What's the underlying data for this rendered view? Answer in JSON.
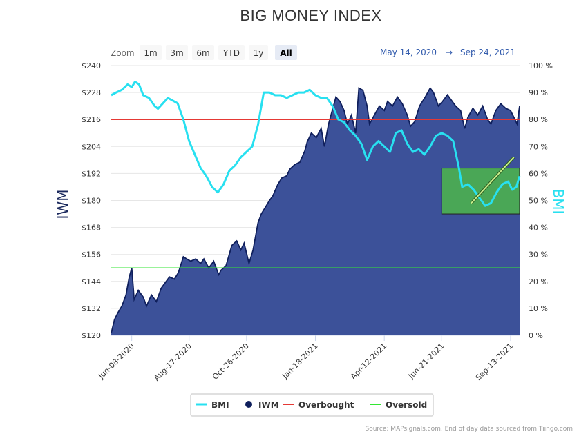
{
  "chart_data": {
    "type": "area",
    "title": "BIG MONEY INDEX",
    "range_selector": {
      "label": "Zoom",
      "buttons": [
        "1m",
        "3m",
        "6m",
        "YTD",
        "1y",
        "All"
      ],
      "selected": "All",
      "from": "May 14, 2020",
      "arrow": "→",
      "to": "Sep 24, 2021"
    },
    "left_axis": {
      "title": "IWM",
      "min": 120,
      "max": 240,
      "ticks": [
        "$120",
        "$132",
        "$144",
        "$156",
        "$168",
        "$180",
        "$192",
        "$204",
        "$216",
        "$228",
        "$240"
      ]
    },
    "right_axis": {
      "title": "BMI",
      "min": 0,
      "max": 100,
      "ticks": [
        "0 %",
        "10 %",
        "20 %",
        "30 %",
        "40 %",
        "50 %",
        "60 %",
        "70 %",
        "80 %",
        "90 %",
        "100 %"
      ]
    },
    "x_axis": {
      "start": "2020-05-14",
      "end": "2021-09-24",
      "ticks": [
        "Jun-08-2020",
        "Aug-17-2020",
        "Oct-26-2020",
        "Jan-18-2021",
        "Apr-12-2021",
        "Jun-21-2021",
        "Sep-13-2021"
      ],
      "tick_dates": [
        "2020-06-08",
        "2020-08-17",
        "2020-10-26",
        "2021-01-18",
        "2021-04-12",
        "2021-06-21",
        "2021-09-13"
      ]
    },
    "legend": {
      "placement": "bottom-center",
      "items": [
        {
          "name": "BMI",
          "type": "line",
          "color": "#28e0f0"
        },
        {
          "name": "IWM",
          "type": "marker",
          "color": "#0f1f5c"
        },
        {
          "name": "Overbought",
          "type": "line",
          "color": "#e53935"
        },
        {
          "name": "Oversold",
          "type": "line",
          "color": "#33e633"
        }
      ]
    },
    "series": [
      {
        "name": "IWM",
        "axis": "left",
        "color": "#0f1f5c",
        "fill": "#3c5199",
        "points": [
          [
            "2020-05-14",
            121
          ],
          [
            "2020-05-18",
            127
          ],
          [
            "2020-05-22",
            130
          ],
          [
            "2020-05-27",
            133
          ],
          [
            "2020-06-01",
            138
          ],
          [
            "2020-06-05",
            146
          ],
          [
            "2020-06-08",
            150
          ],
          [
            "2020-06-11",
            136
          ],
          [
            "2020-06-16",
            140
          ],
          [
            "2020-06-22",
            137
          ],
          [
            "2020-06-26",
            133
          ],
          [
            "2020-07-02",
            138
          ],
          [
            "2020-07-08",
            135
          ],
          [
            "2020-07-14",
            141
          ],
          [
            "2020-07-20",
            144
          ],
          [
            "2020-07-24",
            146
          ],
          [
            "2020-07-30",
            145
          ],
          [
            "2020-08-04",
            148
          ],
          [
            "2020-08-10",
            155
          ],
          [
            "2020-08-14",
            154
          ],
          [
            "2020-08-19",
            153
          ],
          [
            "2020-08-25",
            154
          ],
          [
            "2020-08-31",
            152
          ],
          [
            "2020-09-04",
            154
          ],
          [
            "2020-09-10",
            150
          ],
          [
            "2020-09-16",
            153
          ],
          [
            "2020-09-22",
            147
          ],
          [
            "2020-09-25",
            149
          ],
          [
            "2020-10-01",
            151
          ],
          [
            "2020-10-08",
            160
          ],
          [
            "2020-10-14",
            162
          ],
          [
            "2020-10-19",
            158
          ],
          [
            "2020-10-23",
            161
          ],
          [
            "2020-10-29",
            152
          ],
          [
            "2020-11-03",
            158
          ],
          [
            "2020-11-09",
            170
          ],
          [
            "2020-11-13",
            174
          ],
          [
            "2020-11-18",
            177
          ],
          [
            "2020-11-23",
            180
          ],
          [
            "2020-11-27",
            182
          ],
          [
            "2020-12-03",
            187
          ],
          [
            "2020-12-08",
            190
          ],
          [
            "2020-12-14",
            191
          ],
          [
            "2020-12-18",
            194
          ],
          [
            "2020-12-24",
            196
          ],
          [
            "2020-12-30",
            197
          ],
          [
            "2021-01-05",
            202
          ],
          [
            "2021-01-08",
            206
          ],
          [
            "2021-01-13",
            210
          ],
          [
            "2021-01-19",
            208
          ],
          [
            "2021-01-25",
            212
          ],
          [
            "2021-01-29",
            204
          ],
          [
            "2021-02-03",
            214
          ],
          [
            "2021-02-09",
            222
          ],
          [
            "2021-02-12",
            226
          ],
          [
            "2021-02-17",
            224
          ],
          [
            "2021-02-22",
            220
          ],
          [
            "2021-02-26",
            214
          ],
          [
            "2021-03-03",
            218
          ],
          [
            "2021-03-08",
            210
          ],
          [
            "2021-03-12",
            230
          ],
          [
            "2021-03-17",
            229
          ],
          [
            "2021-03-22",
            222
          ],
          [
            "2021-03-25",
            214
          ],
          [
            "2021-03-31",
            218
          ],
          [
            "2021-04-06",
            222
          ],
          [
            "2021-04-12",
            220
          ],
          [
            "2021-04-16",
            224
          ],
          [
            "2021-04-22",
            222
          ],
          [
            "2021-04-28",
            226
          ],
          [
            "2021-05-04",
            223
          ],
          [
            "2021-05-10",
            218
          ],
          [
            "2021-05-14",
            213
          ],
          [
            "2021-05-19",
            215
          ],
          [
            "2021-05-25",
            222
          ],
          [
            "2021-06-01",
            226
          ],
          [
            "2021-06-07",
            230
          ],
          [
            "2021-06-11",
            228
          ],
          [
            "2021-06-17",
            222
          ],
          [
            "2021-06-22",
            224
          ],
          [
            "2021-06-28",
            227
          ],
          [
            "2021-07-02",
            225
          ],
          [
            "2021-07-08",
            222
          ],
          [
            "2021-07-14",
            220
          ],
          [
            "2021-07-19",
            212
          ],
          [
            "2021-07-23",
            217
          ],
          [
            "2021-07-29",
            221
          ],
          [
            "2021-08-04",
            218
          ],
          [
            "2021-08-10",
            222
          ],
          [
            "2021-08-16",
            216
          ],
          [
            "2021-08-20",
            214
          ],
          [
            "2021-08-26",
            220
          ],
          [
            "2021-09-01",
            223
          ],
          [
            "2021-09-07",
            221
          ],
          [
            "2021-09-13",
            220
          ],
          [
            "2021-09-17",
            217
          ],
          [
            "2021-09-21",
            214
          ],
          [
            "2021-09-24",
            222
          ]
        ]
      },
      {
        "name": "BMI",
        "axis": "right",
        "color": "#28e0f0",
        "points": [
          [
            "2020-05-14",
            89
          ],
          [
            "2020-05-20",
            90
          ],
          [
            "2020-05-27",
            91
          ],
          [
            "2020-06-03",
            93
          ],
          [
            "2020-06-08",
            92
          ],
          [
            "2020-06-12",
            94
          ],
          [
            "2020-06-17",
            93
          ],
          [
            "2020-06-22",
            89
          ],
          [
            "2020-06-29",
            88
          ],
          [
            "2020-07-06",
            85
          ],
          [
            "2020-07-10",
            84
          ],
          [
            "2020-07-16",
            86
          ],
          [
            "2020-07-22",
            88
          ],
          [
            "2020-07-28",
            87
          ],
          [
            "2020-08-03",
            86
          ],
          [
            "2020-08-10",
            80
          ],
          [
            "2020-08-17",
            72
          ],
          [
            "2020-08-24",
            67
          ],
          [
            "2020-08-31",
            62
          ],
          [
            "2020-09-07",
            59
          ],
          [
            "2020-09-14",
            55
          ],
          [
            "2020-09-21",
            53
          ],
          [
            "2020-09-28",
            56
          ],
          [
            "2020-10-05",
            61
          ],
          [
            "2020-10-12",
            63
          ],
          [
            "2020-10-19",
            66
          ],
          [
            "2020-10-26",
            68
          ],
          [
            "2020-11-02",
            70
          ],
          [
            "2020-11-09",
            78
          ],
          [
            "2020-11-16",
            90
          ],
          [
            "2020-11-23",
            90
          ],
          [
            "2020-11-30",
            89
          ],
          [
            "2020-12-07",
            89
          ],
          [
            "2020-12-14",
            88
          ],
          [
            "2020-12-21",
            89
          ],
          [
            "2020-12-28",
            90
          ],
          [
            "2021-01-04",
            90
          ],
          [
            "2021-01-11",
            91
          ],
          [
            "2021-01-18",
            89
          ],
          [
            "2021-01-25",
            88
          ],
          [
            "2021-02-01",
            88
          ],
          [
            "2021-02-08",
            85
          ],
          [
            "2021-02-15",
            80
          ],
          [
            "2021-02-22",
            79
          ],
          [
            "2021-03-01",
            76
          ],
          [
            "2021-03-08",
            74
          ],
          [
            "2021-03-15",
            71
          ],
          [
            "2021-03-22",
            65
          ],
          [
            "2021-03-29",
            70
          ],
          [
            "2021-04-05",
            72
          ],
          [
            "2021-04-12",
            70
          ],
          [
            "2021-04-19",
            68
          ],
          [
            "2021-04-26",
            75
          ],
          [
            "2021-05-03",
            76
          ],
          [
            "2021-05-10",
            71
          ],
          [
            "2021-05-17",
            68
          ],
          [
            "2021-05-24",
            69
          ],
          [
            "2021-05-31",
            67
          ],
          [
            "2021-06-07",
            70
          ],
          [
            "2021-06-14",
            74
          ],
          [
            "2021-06-21",
            75
          ],
          [
            "2021-06-28",
            74
          ],
          [
            "2021-07-05",
            72
          ],
          [
            "2021-07-12",
            62
          ],
          [
            "2021-07-16",
            55
          ],
          [
            "2021-07-23",
            56
          ],
          [
            "2021-07-30",
            54
          ],
          [
            "2021-08-06",
            51
          ],
          [
            "2021-08-13",
            48
          ],
          [
            "2021-08-20",
            49
          ],
          [
            "2021-08-27",
            53
          ],
          [
            "2021-09-03",
            56
          ],
          [
            "2021-09-10",
            57
          ],
          [
            "2021-09-15",
            54
          ],
          [
            "2021-09-20",
            55
          ],
          [
            "2021-09-24",
            59
          ]
        ]
      }
    ],
    "reference_lines": [
      {
        "name": "Overbought",
        "axis": "right",
        "value": 80,
        "color": "#e53935"
      },
      {
        "name": "Oversold",
        "axis": "right",
        "value": 25,
        "color": "#33e633"
      }
    ],
    "annotations": [
      {
        "type": "box",
        "from": "2021-06-21",
        "to": "2021-09-24",
        "y_low": 45,
        "y_high": 62,
        "axis": "right",
        "color": "#4caf50"
      },
      {
        "type": "trend-line",
        "from": [
          "2021-07-27",
          49
        ],
        "to": [
          "2021-09-17",
          66
        ],
        "axis": "right",
        "color": "#c8f08c"
      }
    ],
    "credits": "Source: MAPsignals.com, End of day data sourced from Tiingo.com"
  }
}
